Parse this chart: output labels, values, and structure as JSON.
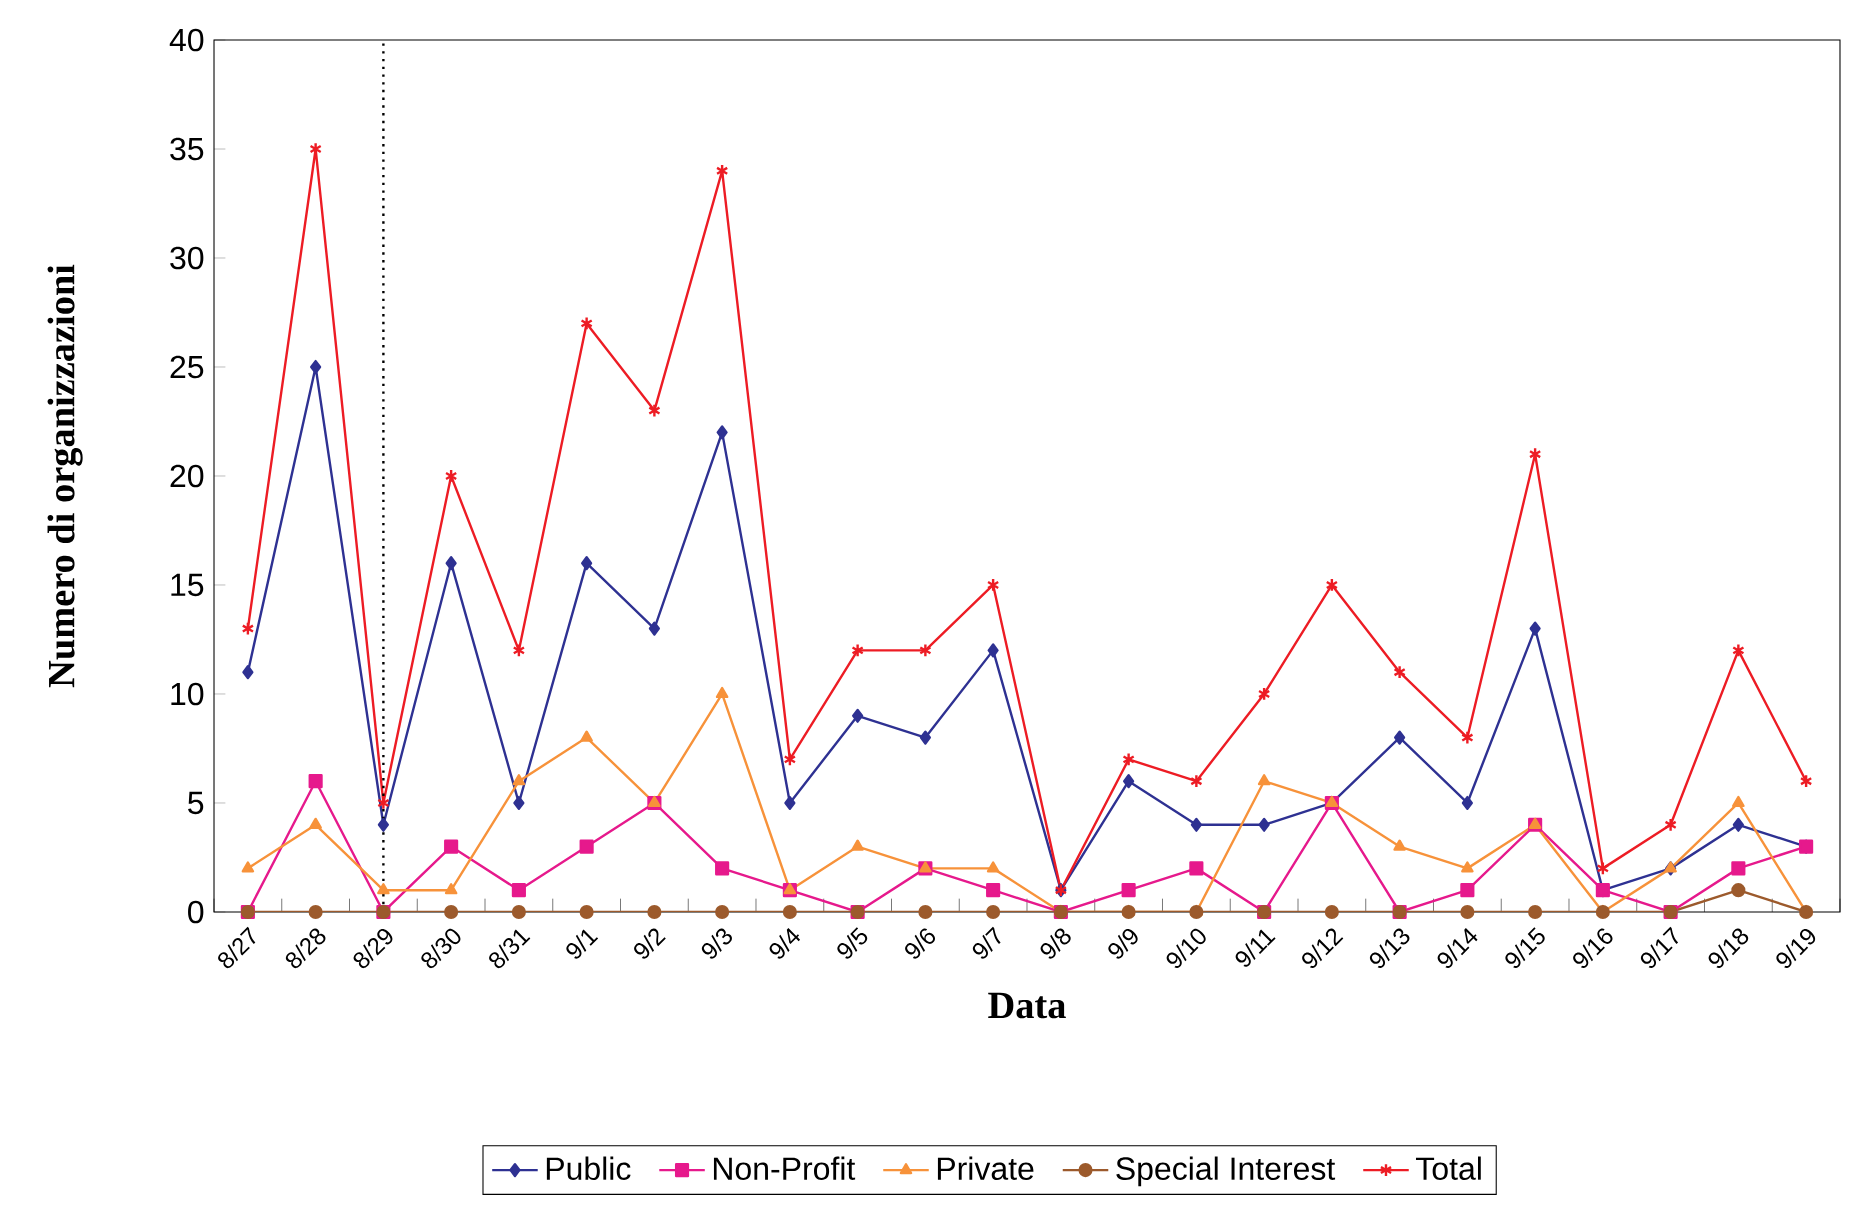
{
  "chart_data": {
    "type": "line",
    "xlabel": "Data",
    "ylabel": "Numero di organizzazioni",
    "categories": [
      "8/27",
      "8/28",
      "8/29",
      "8/30",
      "8/31",
      "9/1",
      "9/2",
      "9/3",
      "9/4",
      "9/5",
      "9/6",
      "9/7",
      "9/8",
      "9/9",
      "9/10",
      "9/11",
      "9/12",
      "9/13",
      "9/14",
      "9/15",
      "9/16",
      "9/17",
      "9/18",
      "9/19"
    ],
    "ylim": [
      0,
      40
    ],
    "yticks": [
      0,
      5,
      10,
      15,
      20,
      25,
      30,
      35,
      40
    ],
    "grid": false,
    "legend": "bottom",
    "line_style": "solid",
    "ref_lines": [
      {
        "axis": "x",
        "value": "8/29",
        "color": "#000000",
        "line_style": "dotted"
      }
    ],
    "series": [
      {
        "name": "Public",
        "color": "#2e3192",
        "marker": "diamond",
        "values": [
          11,
          25,
          4,
          16,
          5,
          16,
          13,
          22,
          5,
          9,
          8,
          12,
          1,
          6,
          4,
          4,
          5,
          8,
          5,
          13,
          1,
          2,
          4,
          3
        ]
      },
      {
        "name": "Non-Profit",
        "color": "#e6198c",
        "marker": "square",
        "values": [
          0,
          6,
          0,
          3,
          1,
          3,
          5,
          2,
          1,
          0,
          2,
          1,
          0,
          1,
          2,
          0,
          5,
          0,
          1,
          4,
          1,
          0,
          2,
          3
        ]
      },
      {
        "name": "Private",
        "color": "#f7923a",
        "marker": "triangle",
        "values": [
          2,
          4,
          1,
          1,
          6,
          8,
          5,
          10,
          1,
          3,
          2,
          2,
          0,
          0,
          0,
          6,
          5,
          3,
          2,
          4,
          0,
          2,
          5,
          0
        ]
      },
      {
        "name": "Special Interest",
        "color": "#9c5a2c",
        "marker": "circle",
        "values": [
          0,
          0,
          0,
          0,
          0,
          0,
          0,
          0,
          0,
          0,
          0,
          0,
          0,
          0,
          0,
          0,
          0,
          0,
          0,
          0,
          0,
          0,
          1,
          0
        ]
      },
      {
        "name": "Total",
        "color": "#ed1c24",
        "marker": "cross",
        "values": [
          13,
          35,
          5,
          20,
          12,
          27,
          23,
          34,
          7,
          12,
          12,
          15,
          1,
          7,
          6,
          10,
          15,
          11,
          8,
          21,
          2,
          4,
          12,
          6
        ]
      }
    ]
  }
}
